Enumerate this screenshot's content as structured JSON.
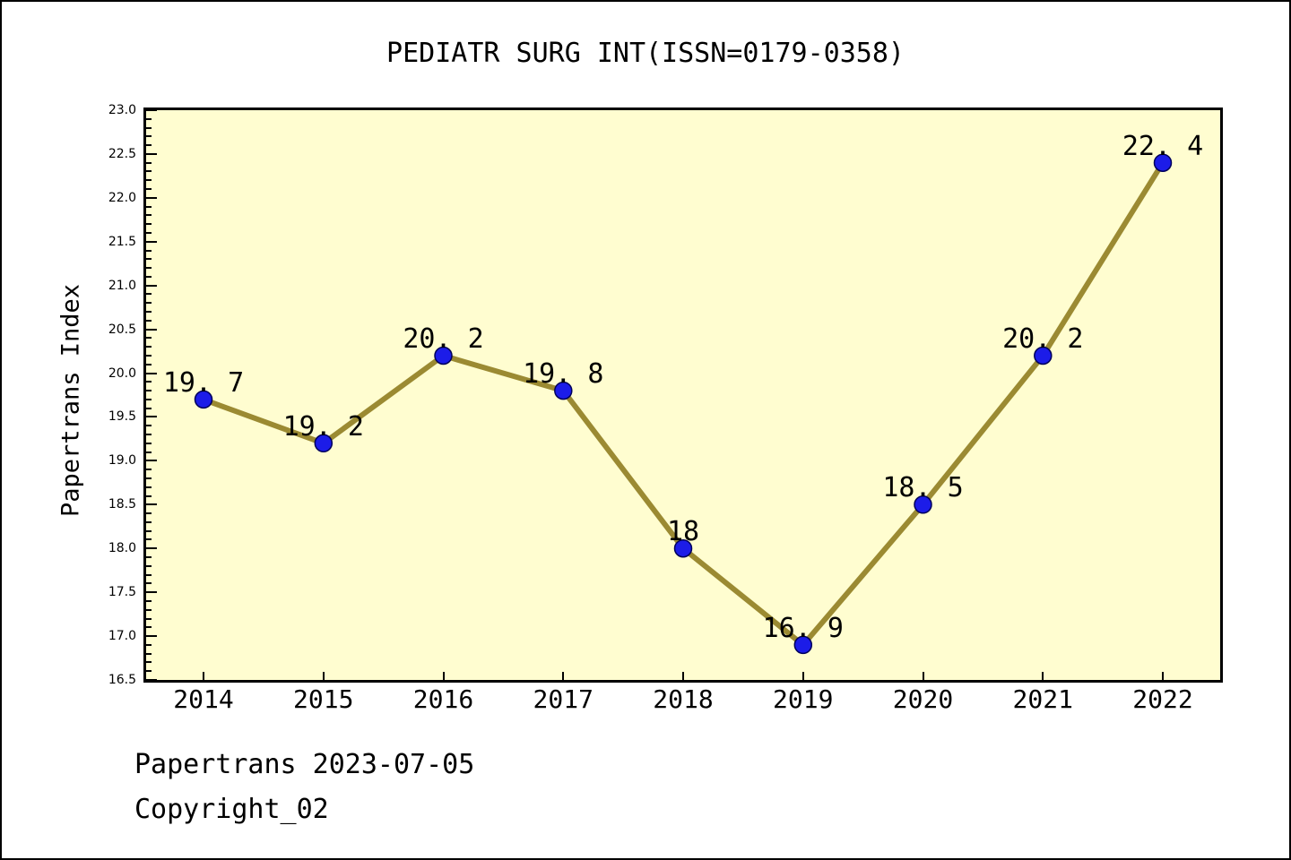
{
  "chart_data": {
    "type": "line",
    "title": "PEDIATR SURG INT(ISSN=0179-0358)",
    "ylabel": "Papertrans Index",
    "xlabel": "",
    "categories": [
      "2014",
      "2015",
      "2016",
      "2017",
      "2018",
      "2019",
      "2020",
      "2021",
      "2022"
    ],
    "values": [
      19.7,
      19.2,
      20.2,
      19.8,
      18,
      16.9,
      18.5,
      20.2,
      22.4
    ],
    "point_labels": [
      "19. 7",
      "19. 2",
      "20. 2",
      "19. 8",
      "18",
      "16. 9",
      "18. 5",
      "20. 2",
      "22. 4"
    ],
    "ylim": [
      16.5,
      23.0
    ],
    "y_major_step": 0.5,
    "y_minor_step": 0.1,
    "y_tick_labels": [
      "16.5",
      "17.0",
      "17.5",
      "18.0",
      "18.5",
      "19.0",
      "19.5",
      "20.0",
      "20.5",
      "21.0",
      "21.5",
      "22.0",
      "22.5",
      "23.0"
    ],
    "grid": false,
    "legend": null,
    "colors": {
      "plot_bg": "#FFFDD0",
      "line": "#9B8A32",
      "marker_fill": "#1C1CE8",
      "marker_edge": "#00005A",
      "axis": "#000000"
    }
  },
  "footer": {
    "line1": "Papertrans 2023-07-05",
    "line2": "Copyright_02"
  }
}
